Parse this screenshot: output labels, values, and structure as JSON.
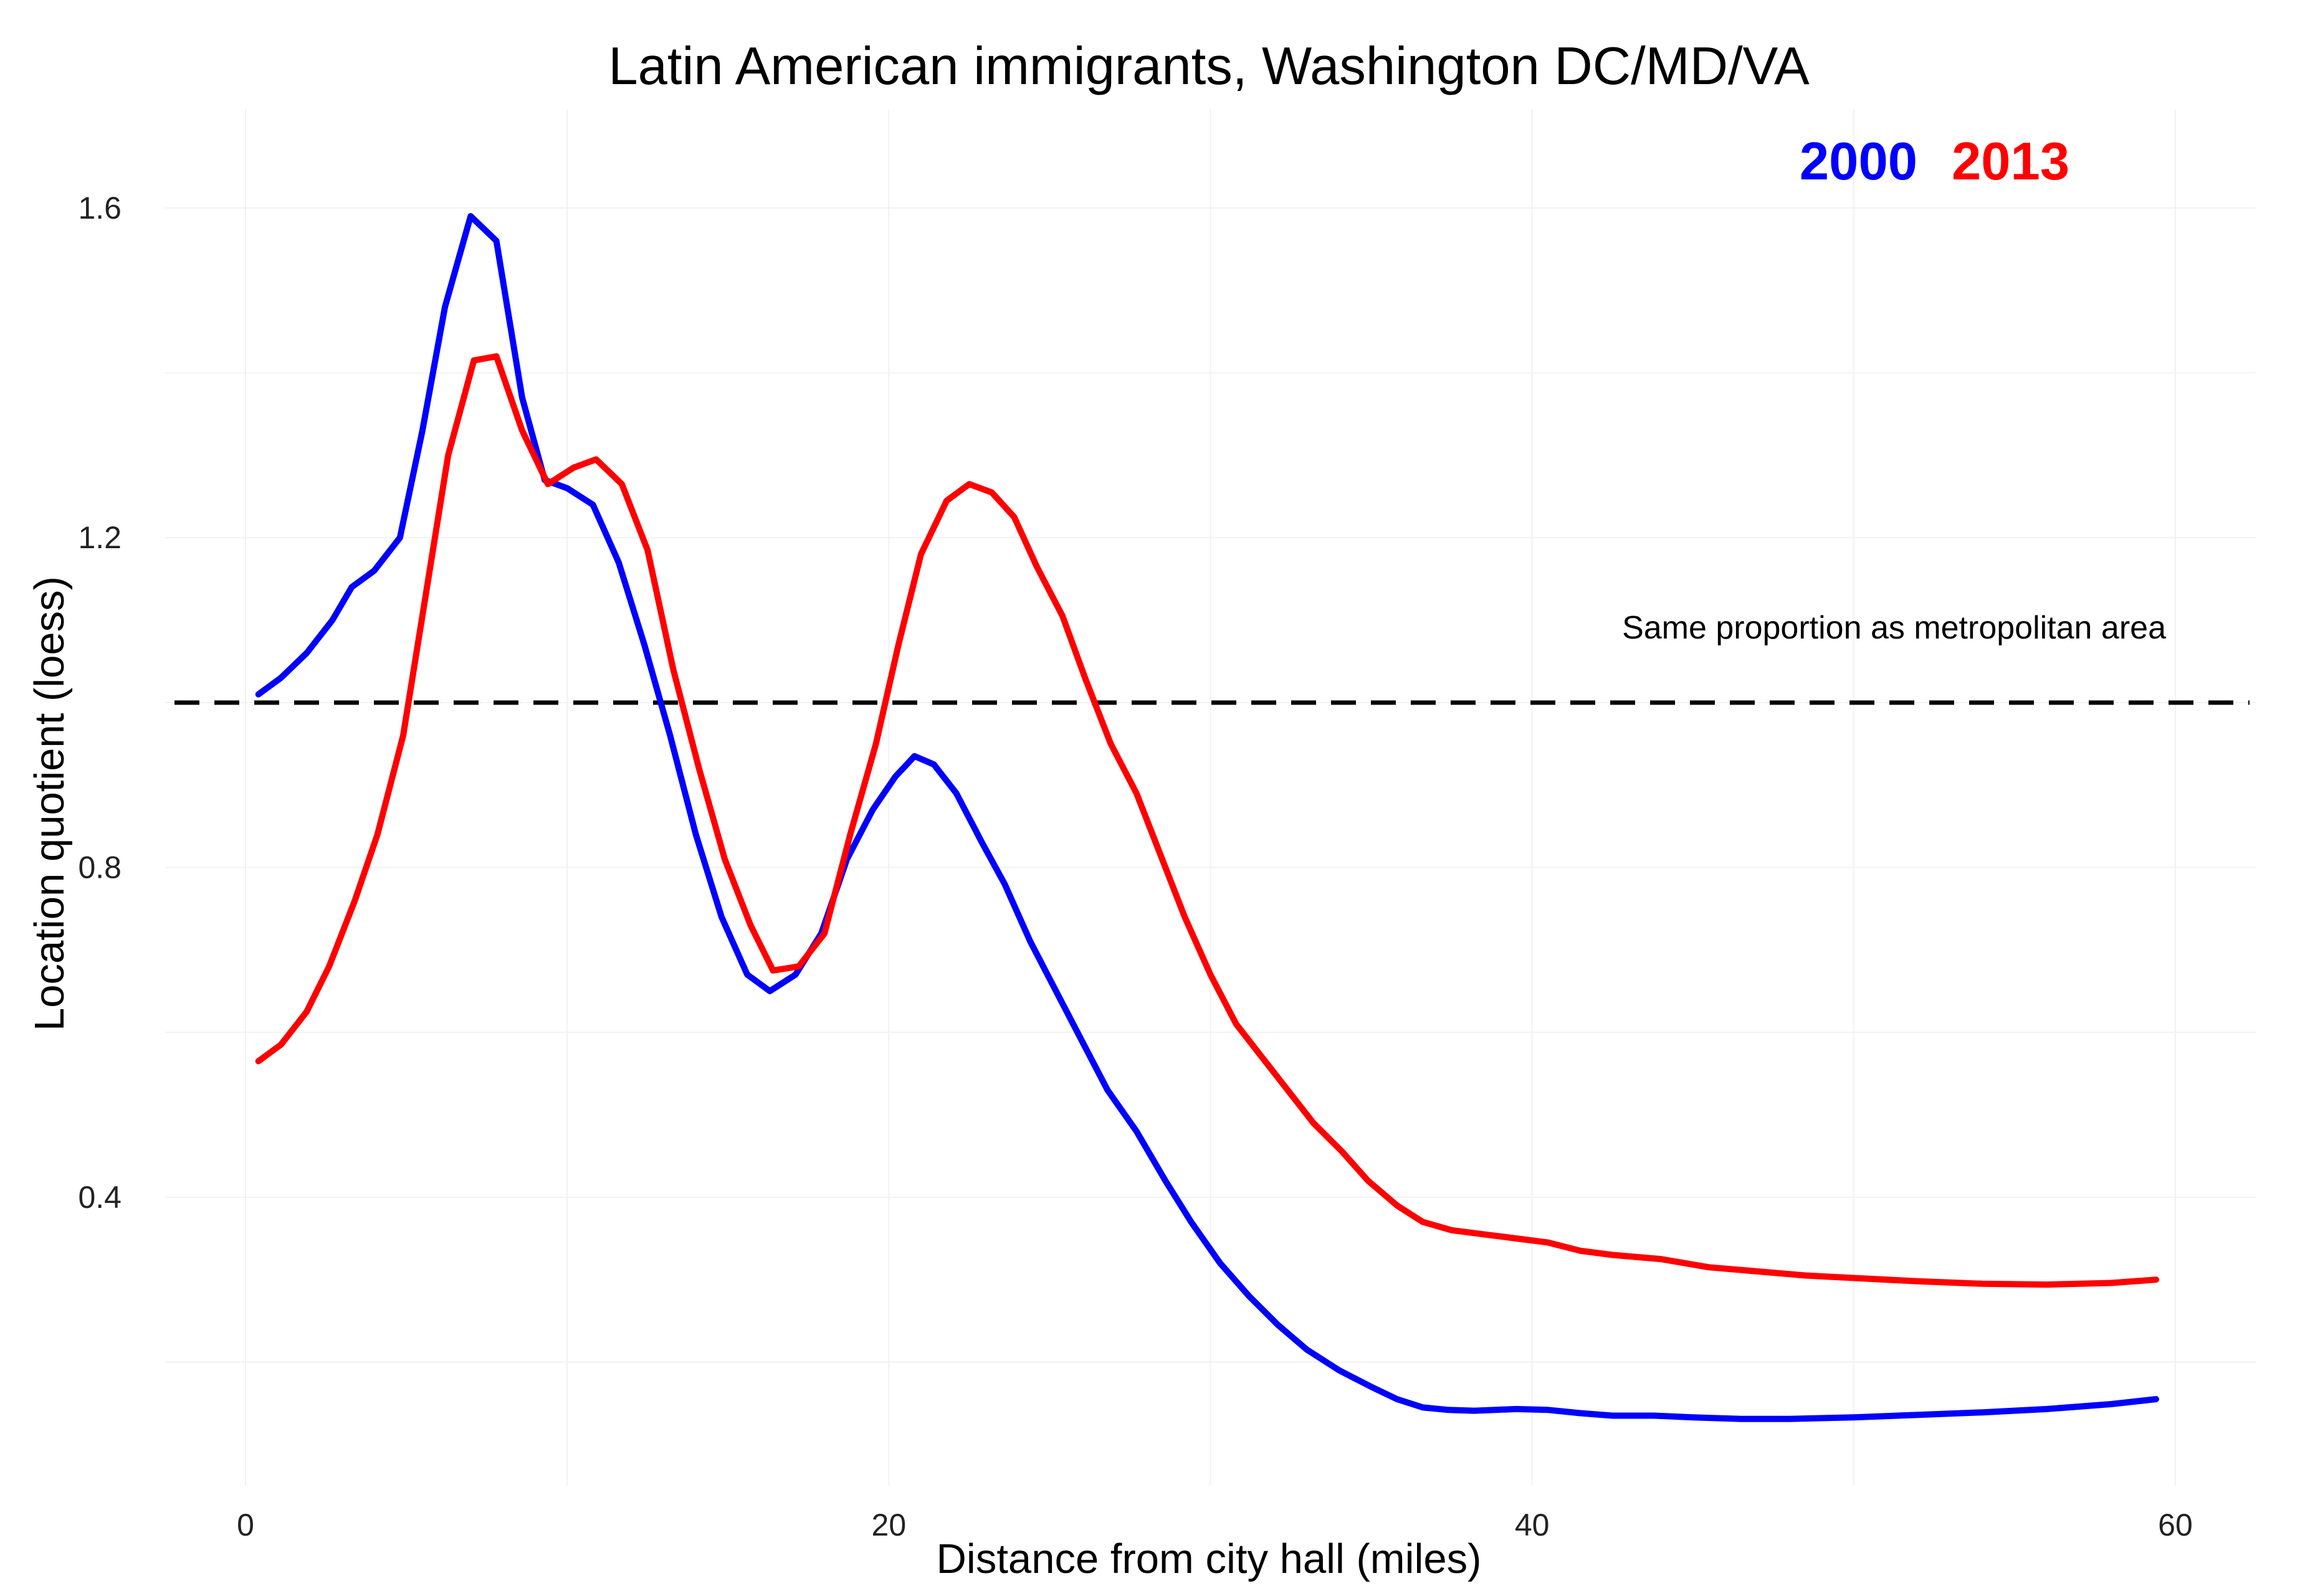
{
  "chart_data": {
    "type": "line",
    "title": "Latin American immigrants, Washington DC/MD/VA",
    "xlabel": "Distance from city hall (miles)",
    "ylabel": "Location quotient (loess)",
    "xlim": [
      -2.5,
      62.5
    ],
    "ylim": [
      0.05,
      1.72
    ],
    "x_ticks": [
      0,
      20,
      40,
      60
    ],
    "y_ticks": [
      0.4,
      0.8,
      1.2,
      1.6
    ],
    "grid": true,
    "legend_position": "top-right",
    "reference_line": {
      "y": 1.0,
      "style": "dashed",
      "label": "Same proportion as metropolitan area"
    },
    "series": [
      {
        "name": "2000",
        "color": "#0000ff",
        "points": [
          [
            0.4,
            1.01
          ],
          [
            1.1,
            1.03
          ],
          [
            1.9,
            1.06
          ],
          [
            2.7,
            1.1
          ],
          [
            3.3,
            1.14
          ],
          [
            4.0,
            1.16
          ],
          [
            4.8,
            1.2
          ],
          [
            5.5,
            1.33
          ],
          [
            6.2,
            1.48
          ],
          [
            7.0,
            1.59
          ],
          [
            7.8,
            1.56
          ],
          [
            8.6,
            1.37
          ],
          [
            9.3,
            1.27
          ],
          [
            10.0,
            1.26
          ],
          [
            10.8,
            1.24
          ],
          [
            11.6,
            1.17
          ],
          [
            12.4,
            1.07
          ],
          [
            13.2,
            0.96
          ],
          [
            14.0,
            0.84
          ],
          [
            14.8,
            0.74
          ],
          [
            15.6,
            0.67
          ],
          [
            16.3,
            0.65
          ],
          [
            17.1,
            0.67
          ],
          [
            17.9,
            0.72
          ],
          [
            18.7,
            0.81
          ],
          [
            19.5,
            0.87
          ],
          [
            20.2,
            0.91
          ],
          [
            20.8,
            0.935
          ],
          [
            21.4,
            0.925
          ],
          [
            22.1,
            0.89
          ],
          [
            22.9,
            0.83
          ],
          [
            23.6,
            0.78
          ],
          [
            24.4,
            0.71
          ],
          [
            25.2,
            0.65
          ],
          [
            26.0,
            0.59
          ],
          [
            26.8,
            0.53
          ],
          [
            27.7,
            0.48
          ],
          [
            28.6,
            0.42
          ],
          [
            29.4,
            0.37
          ],
          [
            30.3,
            0.32
          ],
          [
            31.2,
            0.28
          ],
          [
            32.1,
            0.245
          ],
          [
            33.0,
            0.215
          ],
          [
            34.0,
            0.19
          ],
          [
            35.0,
            0.17
          ],
          [
            35.8,
            0.155
          ],
          [
            36.6,
            0.145
          ],
          [
            37.4,
            0.142
          ],
          [
            38.2,
            0.141
          ],
          [
            39.5,
            0.143
          ],
          [
            40.5,
            0.142
          ],
          [
            41.5,
            0.138
          ],
          [
            42.5,
            0.135
          ],
          [
            43.8,
            0.135
          ],
          [
            45.0,
            0.133
          ],
          [
            46.5,
            0.131
          ],
          [
            48.0,
            0.131
          ],
          [
            50.0,
            0.133
          ],
          [
            52.0,
            0.136
          ],
          [
            54.0,
            0.139
          ],
          [
            56.0,
            0.143
          ],
          [
            58.0,
            0.149
          ],
          [
            59.4,
            0.155
          ]
        ]
      },
      {
        "name": "2013",
        "color": "#ff0000",
        "points": [
          [
            0.4,
            0.565
          ],
          [
            1.1,
            0.585
          ],
          [
            1.9,
            0.625
          ],
          [
            2.6,
            0.68
          ],
          [
            3.4,
            0.76
          ],
          [
            4.1,
            0.84
          ],
          [
            4.9,
            0.96
          ],
          [
            5.6,
            1.13
          ],
          [
            6.3,
            1.3
          ],
          [
            7.1,
            1.415
          ],
          [
            7.8,
            1.42
          ],
          [
            8.6,
            1.33
          ],
          [
            9.4,
            1.265
          ],
          [
            10.2,
            1.285
          ],
          [
            10.9,
            1.295
          ],
          [
            11.7,
            1.265
          ],
          [
            12.5,
            1.185
          ],
          [
            13.3,
            1.04
          ],
          [
            14.1,
            0.92
          ],
          [
            14.9,
            0.81
          ],
          [
            15.7,
            0.73
          ],
          [
            16.4,
            0.675
          ],
          [
            17.2,
            0.68
          ],
          [
            18.0,
            0.72
          ],
          [
            18.8,
            0.84
          ],
          [
            19.6,
            0.95
          ],
          [
            20.3,
            1.07
          ],
          [
            21.0,
            1.18
          ],
          [
            21.8,
            1.245
          ],
          [
            22.5,
            1.265
          ],
          [
            23.2,
            1.255
          ],
          [
            23.9,
            1.225
          ],
          [
            24.6,
            1.165
          ],
          [
            25.4,
            1.105
          ],
          [
            26.1,
            1.03
          ],
          [
            26.9,
            0.95
          ],
          [
            27.7,
            0.89
          ],
          [
            28.4,
            0.82
          ],
          [
            29.2,
            0.74
          ],
          [
            30.0,
            0.67
          ],
          [
            30.8,
            0.61
          ],
          [
            31.6,
            0.57
          ],
          [
            32.4,
            0.53
          ],
          [
            33.2,
            0.49
          ],
          [
            34.1,
            0.455
          ],
          [
            34.9,
            0.42
          ],
          [
            35.8,
            0.39
          ],
          [
            36.6,
            0.37
          ],
          [
            37.5,
            0.36
          ],
          [
            38.5,
            0.355
          ],
          [
            39.5,
            0.35
          ],
          [
            40.5,
            0.345
          ],
          [
            41.5,
            0.335
          ],
          [
            42.5,
            0.33
          ],
          [
            44.0,
            0.325
          ],
          [
            45.5,
            0.315
          ],
          [
            47.0,
            0.31
          ],
          [
            48.5,
            0.305
          ],
          [
            50.0,
            0.302
          ],
          [
            52.0,
            0.298
          ],
          [
            54.0,
            0.295
          ],
          [
            56.0,
            0.294
          ],
          [
            58.0,
            0.296
          ],
          [
            59.4,
            0.3
          ]
        ]
      }
    ]
  }
}
